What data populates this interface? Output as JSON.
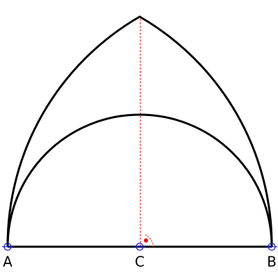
{
  "points": [
    {
      "label": "A"
    },
    {
      "label": "C"
    },
    {
      "label": "B"
    }
  ]
}
